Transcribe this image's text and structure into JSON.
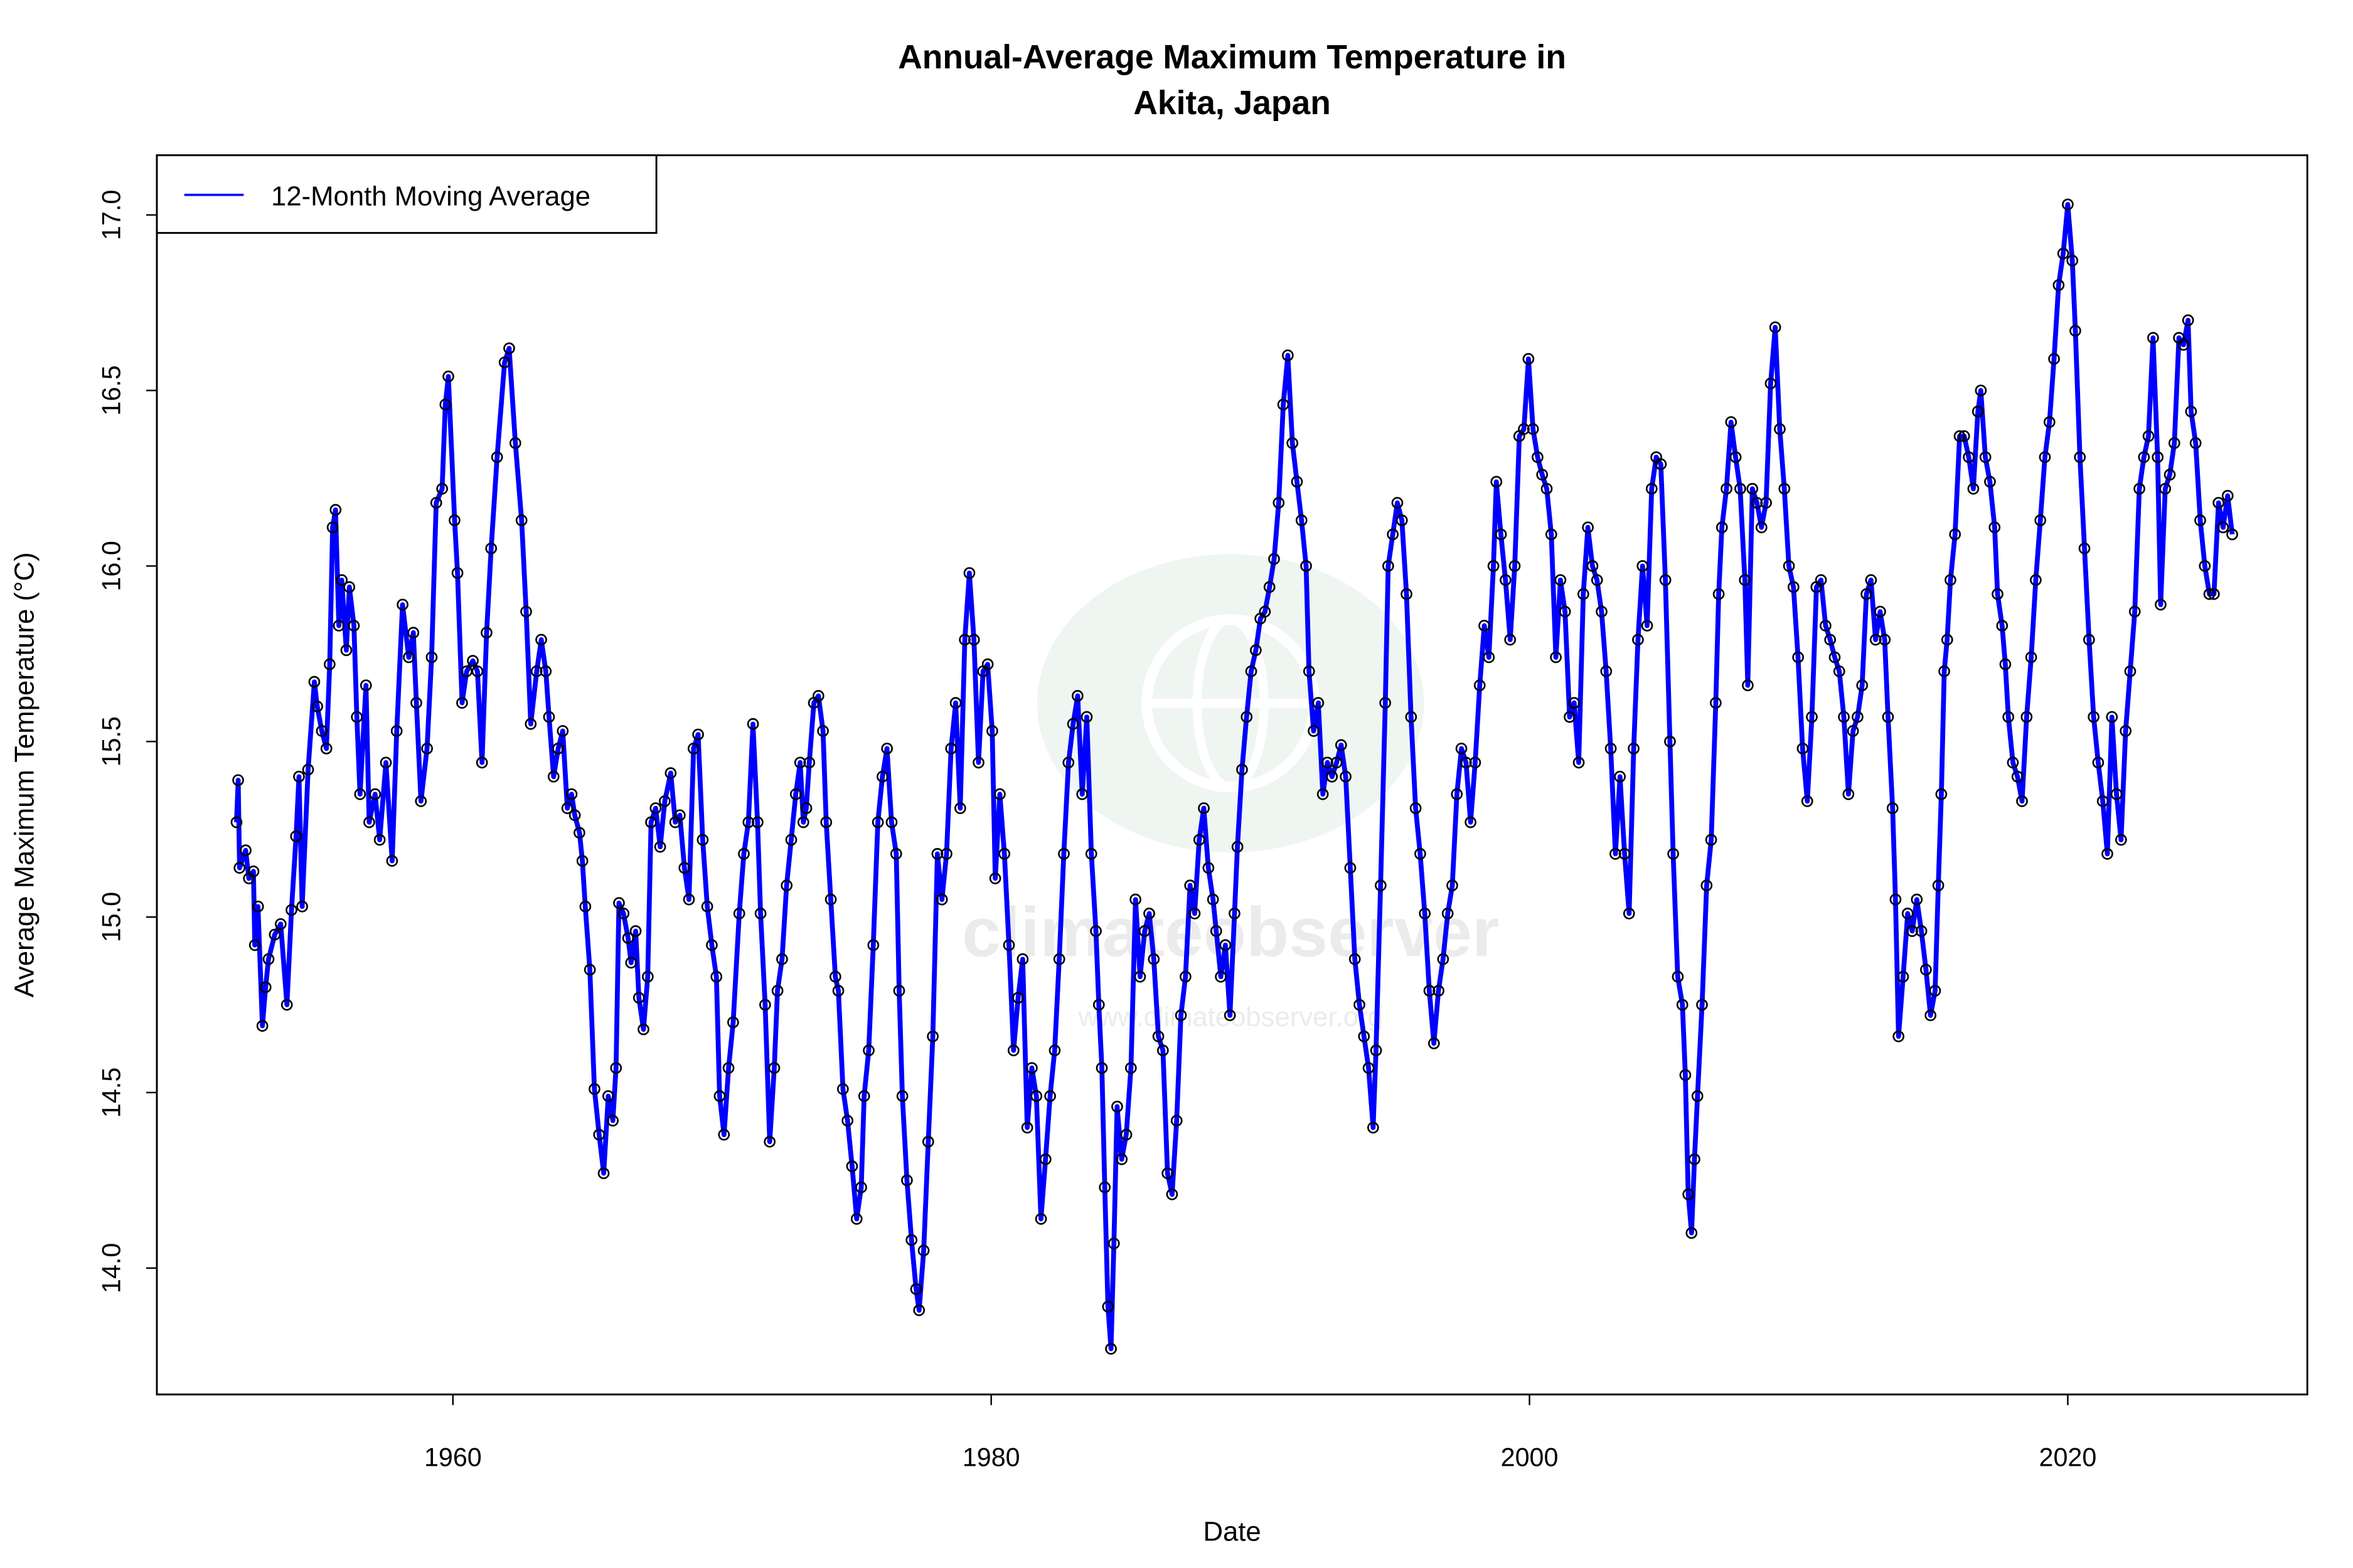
{
  "chart_data": {
    "type": "line",
    "title": [
      "Annual-Average Maximum Temperature in",
      "Akita, Japan"
    ],
    "xlabel": "Date",
    "ylabel": "Average Maximum Temperature (°C)",
    "xlim": [
      1949.0,
      2028.9
    ],
    "ylim": [
      13.64,
      17.17
    ],
    "xticks": [
      1960,
      1980,
      2000,
      2020
    ],
    "yticks": [
      14.0,
      14.5,
      15.0,
      15.5,
      16.0,
      16.5,
      17.0
    ],
    "xtick_labels": [
      "1960",
      "1980",
      "2000",
      "2020"
    ],
    "ytick_labels": [
      "14.0",
      "14.5",
      "15.0",
      "15.5",
      "16.0",
      "16.5",
      "17.0"
    ],
    "grid": false,
    "legend": {
      "position": "top-left",
      "entries": [
        "12-Month Moving Average"
      ]
    },
    "series": [
      {
        "name": "12-Month Moving Average",
        "color": "#0000FF",
        "marker_color": "#000000",
        "x": [
          1951.96,
          1952.02,
          1952.07,
          1952.3,
          1952.42,
          1952.59,
          1952.64,
          1952.76,
          1952.92,
          1953.04,
          1953.15,
          1953.38,
          1953.6,
          1953.83,
          1954.0,
          1954.17,
          1954.28,
          1954.4,
          1954.62,
          1954.85,
          1954.96,
          1955.13,
          1955.3,
          1955.42,
          1955.53,
          1955.64,
          1955.76,
          1955.87,
          1956.04,
          1956.15,
          1956.32,
          1956.43,
          1956.55,
          1956.77,
          1956.89,
          1957.11,
          1957.28,
          1957.51,
          1957.74,
          1957.91,
          1958.13,
          1958.36,
          1958.53,
          1958.64,
          1958.81,
          1959.04,
          1959.21,
          1959.38,
          1959.6,
          1959.72,
          1959.83,
          1960.06,
          1960.17,
          1960.34,
          1960.51,
          1960.74,
          1960.91,
          1961.08,
          1961.25,
          1961.42,
          1961.64,
          1961.92,
          1962.09,
          1962.32,
          1962.55,
          1962.72,
          1962.89,
          1963.11,
          1963.28,
          1963.45,
          1963.57,
          1963.74,
          1963.91,
          1964.08,
          1964.25,
          1964.41,
          1964.53,
          1964.7,
          1964.81,
          1964.92,
          1965.09,
          1965.26,
          1965.43,
          1965.6,
          1965.77,
          1965.94,
          1966.06,
          1966.17,
          1966.34,
          1966.51,
          1966.62,
          1966.79,
          1966.91,
          1967.08,
          1967.24,
          1967.36,
          1967.53,
          1967.7,
          1967.87,
          1968.09,
          1968.26,
          1968.43,
          1968.6,
          1968.77,
          1968.94,
          1969.11,
          1969.28,
          1969.45,
          1969.62,
          1969.79,
          1969.91,
          1970.07,
          1970.24,
          1970.41,
          1970.64,
          1970.81,
          1970.98,
          1971.15,
          1971.32,
          1971.43,
          1971.6,
          1971.77,
          1971.94,
          1972.06,
          1972.23,
          1972.4,
          1972.57,
          1972.74,
          1972.9,
          1973.02,
          1973.13,
          1973.24,
          1973.41,
          1973.58,
          1973.75,
          1973.87,
          1974.04,
          1974.21,
          1974.32,
          1974.49,
          1974.66,
          1974.83,
          1975.0,
          1975.17,
          1975.28,
          1975.45,
          1975.62,
          1975.79,
          1975.96,
          1976.13,
          1976.3,
          1976.47,
          1976.58,
          1976.7,
          1976.87,
          1977.04,
          1977.21,
          1977.32,
          1977.49,
          1977.66,
          1977.83,
          1978.0,
          1978.17,
          1978.34,
          1978.51,
          1978.68,
          1978.85,
          1979.02,
          1979.19,
          1979.36,
          1979.53,
          1979.7,
          1979.87,
          1980.04,
          1980.15,
          1980.32,
          1980.49,
          1980.66,
          1980.83,
          1981.0,
          1981.17,
          1981.34,
          1981.51,
          1981.68,
          1981.85,
          1982.02,
          1982.19,
          1982.36,
          1982.53,
          1982.7,
          1982.87,
          1983.04,
          1983.21,
          1983.38,
          1983.55,
          1983.72,
          1983.89,
          1984.0,
          1984.11,
          1984.22,
          1984.34,
          1984.45,
          1984.56,
          1984.68,
          1984.85,
          1985.02,
          1985.19,
          1985.36,
          1985.53,
          1985.7,
          1985.87,
          1986.04,
          1986.21,
          1986.38,
          1986.55,
          1986.72,
          1986.89,
          1987.05,
          1987.22,
          1987.39,
          1987.56,
          1987.73,
          1987.9,
          1988.07,
          1988.24,
          1988.36,
          1988.53,
          1988.7,
          1988.87,
          1989.04,
          1989.15,
          1989.32,
          1989.49,
          1989.66,
          1989.83,
          1990.0,
          1990.17,
          1990.34,
          1990.51,
          1990.68,
          1990.85,
          1991.02,
          1991.19,
          1991.36,
          1991.53,
          1991.7,
          1991.81,
          1991.98,
          1992.15,
          1992.32,
          1992.49,
          1992.66,
          1992.83,
          1993.0,
          1993.17,
          1993.34,
          1993.51,
          1993.68,
          1993.85,
          1994.02,
          1994.19,
          1994.3,
          1994.47,
          1994.64,
          1994.75,
          1994.92,
          1995.09,
          1995.26,
          1995.43,
          1995.6,
          1995.77,
          1995.94,
          1996.11,
          1996.28,
          1996.45,
          1996.62,
          1996.79,
          1996.96,
          1997.13,
          1997.3,
          1997.47,
          1997.64,
          1997.81,
          1997.98,
          1998.15,
          1998.32,
          1998.49,
          1998.66,
          1998.77,
          1998.94,
          1999.11,
          1999.28,
          1999.45,
          1999.62,
          1999.79,
          1999.96,
          2000.13,
          2000.3,
          2000.47,
          2000.64,
          2000.81,
          2000.98,
          2001.15,
          2001.32,
          2001.49,
          2001.66,
          2001.83,
          2002.0,
          2002.17,
          2002.34,
          2002.51,
          2002.68,
          2002.85,
          2003.02,
          2003.19,
          2003.36,
          2003.53,
          2003.7,
          2003.87,
          2004.03,
          2004.2,
          2004.37,
          2004.54,
          2004.71,
          2004.88,
          2005.05,
          2005.22,
          2005.34,
          2005.51,
          2005.68,
          2005.79,
          2005.9,
          2006.02,
          2006.13,
          2006.24,
          2006.41,
          2006.58,
          2006.75,
          2006.92,
          2007.03,
          2007.15,
          2007.32,
          2007.49,
          2007.66,
          2007.83,
          2008.0,
          2008.11,
          2008.28,
          2008.45,
          2008.62,
          2008.79,
          2008.96,
          2009.13,
          2009.3,
          2009.47,
          2009.64,
          2009.81,
          2009.98,
          2010.15,
          2010.32,
          2010.49,
          2010.66,
          2010.83,
          2011.0,
          2011.17,
          2011.34,
          2011.51,
          2011.68,
          2011.85,
          2012.02,
          2012.19,
          2012.36,
          2012.52,
          2012.69,
          2012.86,
          2013.03,
          2013.2,
          2013.32,
          2013.49,
          2013.6,
          2013.71,
          2013.88,
          2014.05,
          2014.22,
          2014.39,
          2014.56,
          2014.73,
          2014.9,
          2015.07,
          2015.19,
          2015.3,
          2015.41,
          2015.52,
          2015.64,
          2015.81,
          2015.98,
          2016.15,
          2016.32,
          2016.49,
          2016.66,
          2016.77,
          2016.94,
          2017.11,
          2017.28,
          2017.39,
          2017.56,
          2017.68,
          2017.79,
          2017.96,
          2018.13,
          2018.3,
          2018.47,
          2018.64,
          2018.81,
          2018.98,
          2019.15,
          2019.32,
          2019.49,
          2019.66,
          2019.83,
          2020.0,
          2020.17,
          2020.28,
          2020.45,
          2020.62,
          2020.79,
          2020.96,
          2021.13,
          2021.3,
          2021.47,
          2021.64,
          2021.81,
          2021.98,
          2022.15,
          2022.32,
          2022.49,
          2022.66,
          2022.83,
          2023.0,
          2023.17,
          2023.34,
          2023.45,
          2023.62,
          2023.79,
          2023.96,
          2024.13,
          2024.3,
          2024.47,
          2024.58,
          2024.75,
          2024.92,
          2025.09,
          2025.26,
          2025.43,
          2025.6,
          2025.77,
          2025.94,
          2026.11
        ],
        "y": [
          15.27,
          15.39,
          15.14,
          15.19,
          15.11,
          15.13,
          14.92,
          15.03,
          14.69,
          14.8,
          14.88,
          14.95,
          14.98,
          14.75,
          15.02,
          15.23,
          15.4,
          15.03,
          15.42,
          15.67,
          15.6,
          15.53,
          15.48,
          15.72,
          16.11,
          16.16,
          15.83,
          15.96,
          15.76,
          15.94,
          15.83,
          15.57,
          15.35,
          15.66,
          15.27,
          15.35,
          15.22,
          15.44,
          15.16,
          15.53,
          15.89,
          15.74,
          15.81,
          15.61,
          15.33,
          15.48,
          15.74,
          16.18,
          16.22,
          16.46,
          16.54,
          16.13,
          15.98,
          15.61,
          15.7,
          15.73,
          15.7,
          15.44,
          15.81,
          16.05,
          16.31,
          16.58,
          16.62,
          16.35,
          16.13,
          15.87,
          15.55,
          15.7,
          15.79,
          15.7,
          15.57,
          15.4,
          15.48,
          15.53,
          15.31,
          15.35,
          15.29,
          15.24,
          15.16,
          15.03,
          14.85,
          14.51,
          14.38,
          14.27,
          14.49,
          14.42,
          14.57,
          15.04,
          15.01,
          14.94,
          14.87,
          14.96,
          14.77,
          14.68,
          14.83,
          15.27,
          15.31,
          15.2,
          15.33,
          15.41,
          15.27,
          15.29,
          15.14,
          15.05,
          15.48,
          15.52,
          15.22,
          15.03,
          14.92,
          14.83,
          14.49,
          14.38,
          14.57,
          14.7,
          15.01,
          15.18,
          15.27,
          15.55,
          15.27,
          15.01,
          14.75,
          14.36,
          14.57,
          14.79,
          14.88,
          15.09,
          15.22,
          15.35,
          15.44,
          15.27,
          15.31,
          15.44,
          15.61,
          15.63,
          15.53,
          15.27,
          15.05,
          14.83,
          14.79,
          14.51,
          14.42,
          14.29,
          14.14,
          14.23,
          14.49,
          14.62,
          14.92,
          15.27,
          15.4,
          15.48,
          15.27,
          15.18,
          14.79,
          14.49,
          14.25,
          14.08,
          13.94,
          13.88,
          14.05,
          14.36,
          14.66,
          15.18,
          15.05,
          15.18,
          15.48,
          15.61,
          15.31,
          15.79,
          15.98,
          15.79,
          15.44,
          15.7,
          15.72,
          15.53,
          15.11,
          15.35,
          15.18,
          14.92,
          14.62,
          14.77,
          14.88,
          14.4,
          14.57,
          14.49,
          14.14,
          14.31,
          14.49,
          14.62,
          14.88,
          15.18,
          15.44,
          15.55,
          15.63,
          15.35,
          15.57,
          15.18,
          14.96,
          14.75,
          14.57,
          14.23,
          13.89,
          13.77,
          14.07,
          14.46,
          14.31,
          14.38,
          14.57,
          15.05,
          14.83,
          14.96,
          15.01,
          14.88,
          14.66,
          14.62,
          14.27,
          14.21,
          14.42,
          14.72,
          14.83,
          15.09,
          15.01,
          15.22,
          15.31,
          15.14,
          15.05,
          14.96,
          14.83,
          14.92,
          14.72,
          15.01,
          15.2,
          15.42,
          15.57,
          15.7,
          15.76,
          15.85,
          15.87,
          15.94,
          16.02,
          16.18,
          16.46,
          16.6,
          16.35,
          16.24,
          16.13,
          16.0,
          15.7,
          15.53,
          15.61,
          15.35,
          15.44,
          15.4,
          15.44,
          15.49,
          15.4,
          15.14,
          14.88,
          14.75,
          14.66,
          14.57,
          14.4,
          14.62,
          15.09,
          15.61,
          16.0,
          16.09,
          16.18,
          16.13,
          15.92,
          15.57,
          15.31,
          15.18,
          15.01,
          14.79,
          14.64,
          14.79,
          14.88,
          15.01,
          15.09,
          15.35,
          15.48,
          15.44,
          15.27,
          15.44,
          15.66,
          15.83,
          15.74,
          16.0,
          16.24,
          16.09,
          15.96,
          15.79,
          16.0,
          16.37,
          16.39,
          16.59,
          16.39,
          16.31,
          16.26,
          16.22,
          16.09,
          15.74,
          15.96,
          15.87,
          15.57,
          15.61,
          15.44,
          15.92,
          16.11,
          16.0,
          15.96,
          15.87,
          15.7,
          15.48,
          15.18,
          15.4,
          15.18,
          15.01,
          15.48,
          15.79,
          16.0,
          15.83,
          16.22,
          16.31,
          16.29,
          15.96,
          15.5,
          15.18,
          14.83,
          14.75,
          14.55,
          14.21,
          14.1,
          14.31,
          14.49,
          14.75,
          15.09,
          15.22,
          15.61,
          15.92,
          16.11,
          16.22,
          16.41,
          16.31,
          16.22,
          15.96,
          15.66,
          16.22,
          16.18,
          16.11,
          16.18,
          16.52,
          16.68,
          16.39,
          16.22,
          16.0,
          15.94,
          15.74,
          15.48,
          15.33,
          15.57,
          15.94,
          15.96,
          15.83,
          15.79,
          15.74,
          15.7,
          15.57,
          15.35,
          15.53,
          15.57,
          15.66,
          15.92,
          15.96,
          15.79,
          15.87,
          15.79,
          15.57,
          15.31,
          15.05,
          14.66,
          14.83,
          15.01,
          14.96,
          15.05,
          14.96,
          14.85,
          14.72,
          14.79,
          15.09,
          15.35,
          15.7,
          15.79,
          15.96,
          16.09,
          16.37,
          16.37,
          16.31,
          16.22,
          16.44,
          16.5,
          16.31,
          16.24,
          16.11,
          15.92,
          15.83,
          15.72,
          15.57,
          15.44,
          15.4,
          15.33,
          15.57,
          15.74,
          15.96,
          16.13,
          16.31,
          16.41,
          16.59,
          16.8,
          16.89,
          17.03,
          16.87,
          16.67,
          16.31,
          16.05,
          15.79,
          15.57,
          15.44,
          15.33,
          15.18,
          15.57,
          15.35,
          15.22,
          15.53,
          15.7,
          15.87,
          16.22,
          16.31,
          16.37,
          16.65,
          16.31,
          15.89,
          16.22,
          16.26,
          16.35,
          16.65,
          16.63,
          16.7,
          16.44,
          16.35,
          16.13,
          16.0,
          15.92,
          15.92,
          16.18,
          16.11,
          16.2,
          16.09
        ]
      }
    ],
    "watermark": {
      "text": "climateobserver",
      "url_text": "www.climateobserver.org"
    }
  }
}
